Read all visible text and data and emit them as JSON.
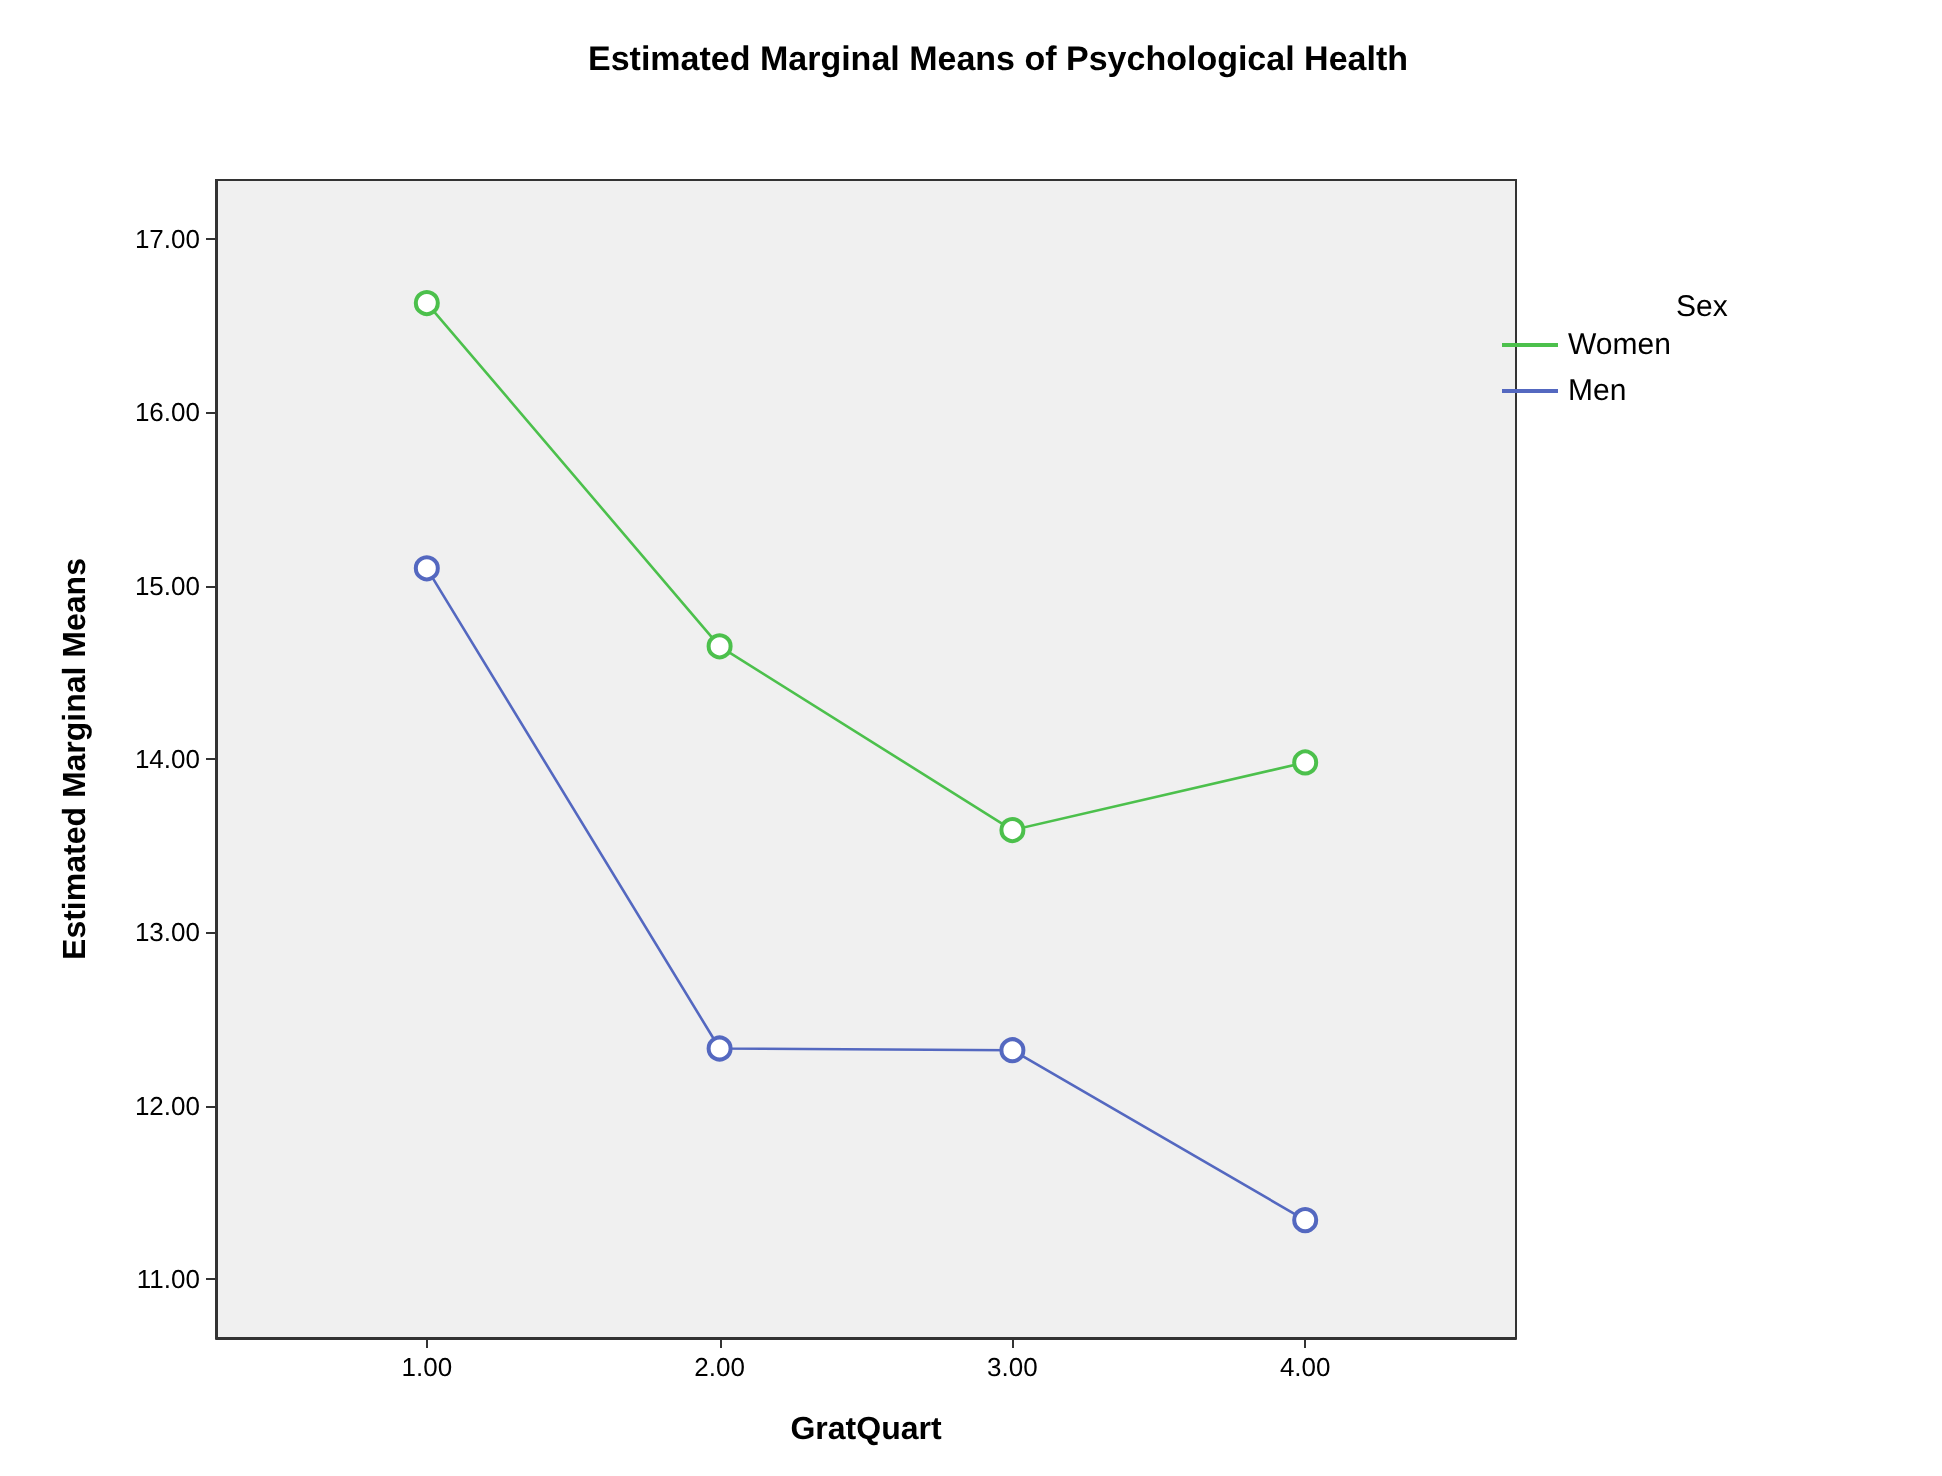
{
  "chart_data": {
    "type": "line",
    "title": "Estimated Marginal Means of Psychological Health",
    "xlabel": "GratQuart",
    "ylabel": "Estimated Marginal Means",
    "legend_title": "Sex",
    "x": [
      1,
      2,
      3,
      4
    ],
    "series": [
      {
        "name": "Women",
        "color": "#4cc04c",
        "values": [
          16.63,
          14.65,
          13.59,
          13.98
        ]
      },
      {
        "name": "Men",
        "color": "#5468c0",
        "values": [
          15.1,
          12.33,
          12.32,
          11.34
        ]
      }
    ],
    "xlim": [
      0.28,
      4.72
    ],
    "xticks": [
      {
        "value": 1,
        "label": "1.00"
      },
      {
        "value": 2,
        "label": "2.00"
      },
      {
        "value": 3,
        "label": "3.00"
      },
      {
        "value": 4,
        "label": "4.00"
      }
    ],
    "ylim": [
      10.66,
      17.34
    ],
    "yticks": [
      {
        "value": 11,
        "label": "11.00"
      },
      {
        "value": 12,
        "label": "12.00"
      },
      {
        "value": 13,
        "label": "13.00"
      },
      {
        "value": 14,
        "label": "14.00"
      },
      {
        "value": 15,
        "label": "15.00"
      },
      {
        "value": 16,
        "label": "16.00"
      },
      {
        "value": 17,
        "label": "17.00"
      }
    ],
    "grid": false,
    "legend": "top right",
    "marker": "circle",
    "line_style": "solid"
  }
}
